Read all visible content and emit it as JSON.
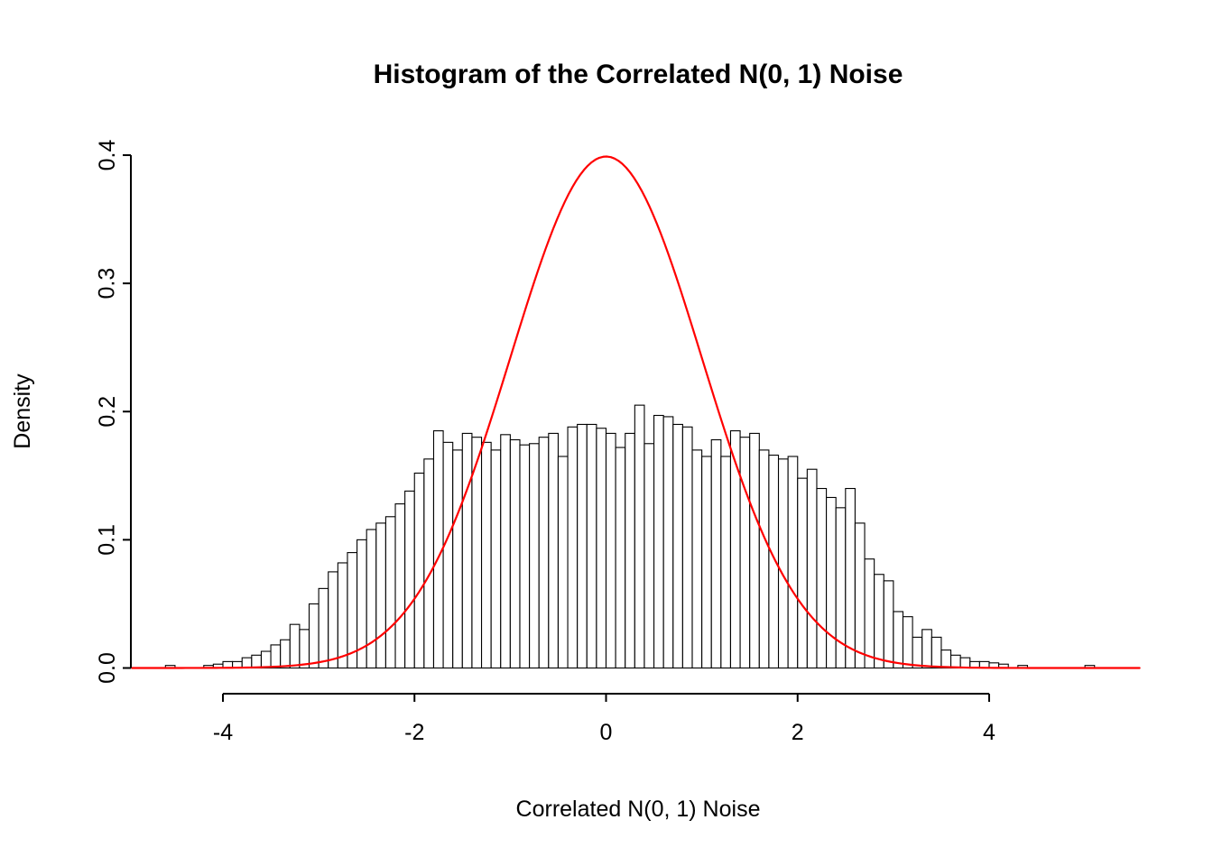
{
  "page": {
    "background": "#ffffff"
  },
  "chart_data": {
    "type": "bar",
    "subtype": "histogram-with-density-overlay",
    "title": "Histogram of the Correlated N(0, 1) Noise",
    "xlabel": "Correlated N(0, 1) Noise",
    "ylabel": "Density",
    "x_ticks": [
      -4,
      -2,
      0,
      2,
      4
    ],
    "x_tick_labels": [
      "-4",
      "-2",
      "0",
      "2",
      "4"
    ],
    "y_ticks": [
      0,
      0.1,
      0.2,
      0.3,
      0.4
    ],
    "y_tick_labels": [
      "0.0",
      "0.1",
      "0.2",
      "0.3",
      "0.4"
    ],
    "xlim": [
      -4.95,
      5.6
    ],
    "ylim": [
      0,
      0.409
    ],
    "grid": false,
    "bar_fill": "#ffffff",
    "bar_stroke": "#000000",
    "axis_color": "#000000",
    "histogram": {
      "bin_first": -4.6,
      "bin_width": 0.1,
      "densities": [
        0.002,
        0,
        0,
        0,
        0.002,
        0.003,
        0.005,
        0.005,
        0.008,
        0.01,
        0.013,
        0.018,
        0.022,
        0.034,
        0.03,
        0.05,
        0.062,
        0.075,
        0.082,
        0.09,
        0.1,
        0.108,
        0.113,
        0.118,
        0.128,
        0.138,
        0.152,
        0.163,
        0.185,
        0.176,
        0.17,
        0.183,
        0.18,
        0.176,
        0.17,
        0.182,
        0.178,
        0.174,
        0.175,
        0.18,
        0.183,
        0.165,
        0.188,
        0.19,
        0.19,
        0.187,
        0.183,
        0.172,
        0.183,
        0.205,
        0.175,
        0.197,
        0.196,
        0.19,
        0.188,
        0.17,
        0.165,
        0.178,
        0.165,
        0.185,
        0.18,
        0.183,
        0.17,
        0.166,
        0.163,
        0.165,
        0.148,
        0.155,
        0.14,
        0.133,
        0.125,
        0.14,
        0.113,
        0.085,
        0.073,
        0.068,
        0.044,
        0.04,
        0.024,
        0.03,
        0.024,
        0.014,
        0.01,
        0.008,
        0.005,
        0.005,
        0.004,
        0.003,
        0,
        0.002,
        0,
        0,
        0,
        0,
        0,
        0,
        0.002,
        0
      ]
    },
    "overlay_curve": {
      "name": "standard-normal-density",
      "distribution": "normal",
      "mean": 0,
      "sd": 1,
      "peak_density": 0.3989,
      "color": "#ff0000"
    }
  }
}
